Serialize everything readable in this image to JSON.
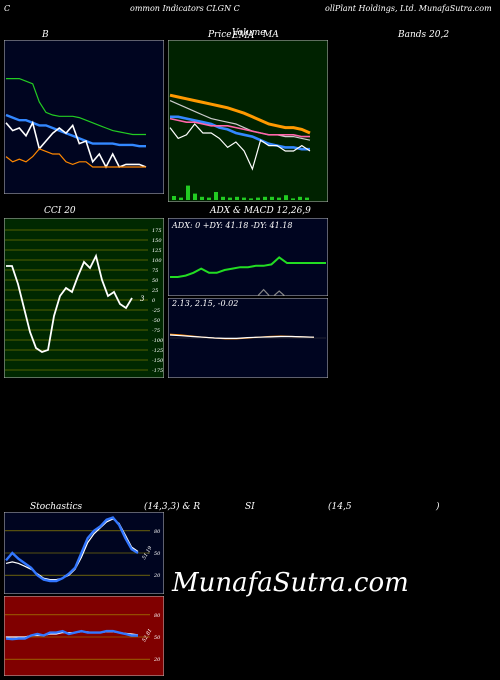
{
  "header": {
    "left": "C",
    "mid1": "ommon  Indicators CLGN  C",
    "mid2": "ollPlant Holdings, Ltd. MunafaSutra.com"
  },
  "titles": {
    "b": "B",
    "price": "Price,",
    "price_overlap1": "Volume",
    "price_overlap2": "EMA",
    "ma": "MA",
    "bands": "Bands 20,2",
    "cci": "CCI 20",
    "adx_macd": "ADX  & MACD 12,26,9",
    "adx_values": "ADX: 0  +DY: 41.18  -DY: 41.18",
    "macd_values": "2.13,  2.15,  -0.02",
    "stoch_left": "Stochastics",
    "stoch_mid": "(14,3,3) & R",
    "rsi_mid": "SI",
    "rsi_params": "(14,5",
    "rsi_close": ")"
  },
  "watermark": "MunafaSutra.com",
  "colors": {
    "panel_blue": "#000520",
    "panel_green": "#002200",
    "cci_bg": "#002800",
    "rsi_bg": "#800000",
    "green": "#22dd22",
    "blue": "#3388ff",
    "orange": "#ff8800",
    "white": "#ffffff"
  },
  "chart_data": [
    {
      "id": "bollinger",
      "type": "line",
      "title": "B",
      "ylim": [
        0,
        100
      ],
      "series": [
        {
          "color": "#22cc22",
          "values": [
            78,
            78,
            78,
            76,
            74,
            60,
            52,
            50,
            49,
            49,
            49,
            48,
            46,
            44,
            42,
            40,
            38,
            37,
            36,
            35,
            35,
            35
          ]
        },
        {
          "color": "#3388ff",
          "values": [
            50,
            48,
            46,
            46,
            44,
            42,
            42,
            40,
            38,
            36,
            34,
            32,
            30,
            28,
            28,
            28,
            28,
            27,
            27,
            27,
            26,
            26
          ]
        },
        {
          "color": "#ffffff",
          "values": [
            44,
            38,
            40,
            34,
            44,
            24,
            30,
            36,
            40,
            36,
            42,
            28,
            30,
            14,
            20,
            10,
            20,
            10,
            12,
            12,
            12,
            10
          ]
        },
        {
          "color": "#ff8800",
          "values": [
            18,
            14,
            16,
            14,
            18,
            24,
            22,
            20,
            20,
            14,
            12,
            14,
            14,
            10,
            10,
            10,
            10,
            10,
            10,
            10,
            10,
            10
          ]
        }
      ]
    },
    {
      "id": "price_ma",
      "type": "line",
      "title": "Price, Volume, EMA, MA",
      "ylim": [
        0,
        100
      ],
      "series": [
        {
          "color": "#ff9900",
          "values": [
            72,
            70,
            68,
            66,
            64,
            62,
            60,
            58,
            55,
            52,
            48,
            44,
            40,
            38,
            36,
            36,
            34,
            30
          ]
        },
        {
          "color": "#cccccc",
          "values": [
            66,
            62,
            58,
            54,
            50,
            46,
            44,
            42,
            40,
            36,
            32,
            30,
            28,
            28,
            26,
            26,
            24,
            22
          ]
        },
        {
          "color": "#3388ff",
          "values": [
            48,
            48,
            46,
            44,
            42,
            40,
            36,
            34,
            30,
            28,
            26,
            22,
            18,
            16,
            14,
            14,
            12,
            12
          ]
        },
        {
          "color": "#ff66aa",
          "values": [
            46,
            44,
            42,
            42,
            40,
            38,
            38,
            38,
            36,
            34,
            32,
            30,
            28,
            28,
            28,
            28,
            26,
            26
          ]
        },
        {
          "color": "#ffffff",
          "values": [
            36,
            24,
            28,
            40,
            30,
            30,
            24,
            14,
            20,
            10,
            -10,
            22,
            16,
            16,
            10,
            10,
            16,
            10
          ]
        }
      ],
      "volume": [
        5,
        3,
        18,
        8,
        4,
        3,
        10,
        4,
        3,
        4,
        3,
        2,
        3,
        4,
        4,
        3,
        6,
        2,
        4,
        3
      ]
    },
    {
      "id": "cci",
      "type": "line",
      "title": "CCI 20",
      "ylim": [
        -175,
        175
      ],
      "ticks": [
        "175",
        "150",
        "125",
        "100",
        "75",
        "50",
        "25",
        "0",
        "-25",
        "-50",
        "-75",
        "-100",
        "-125",
        "-150",
        "-175"
      ],
      "last_label": "3",
      "values": [
        85,
        85,
        40,
        -20,
        -80,
        -120,
        -130,
        -125,
        -40,
        10,
        30,
        20,
        60,
        95,
        80,
        110,
        50,
        10,
        20,
        -10,
        -20,
        5
      ]
    },
    {
      "id": "adx",
      "type": "line",
      "title": "ADX & MACD 12,26,9",
      "ylim": [
        0,
        100
      ],
      "series": [
        {
          "name": "ADX",
          "color": "#22dd22",
          "values": [
            30,
            30,
            32,
            36,
            42,
            36,
            36,
            40,
            42,
            44,
            44,
            46,
            46,
            48,
            58,
            50,
            50,
            50,
            50,
            50,
            50
          ]
        },
        {
          "name": "DI",
          "color": "#888888",
          "values": [
            0,
            0,
            0,
            0,
            0,
            0,
            0,
            0,
            0,
            0,
            0,
            0,
            12,
            0,
            10,
            0,
            0,
            0,
            0,
            0,
            0
          ]
        }
      ]
    },
    {
      "id": "macd",
      "type": "line",
      "ylim": [
        -1,
        1
      ],
      "series": [
        {
          "color": "#ff8800",
          "values": [
            0.1,
            0.08,
            0.05,
            0.02,
            0.0,
            -0.02,
            -0.02,
            0.0,
            0.02,
            0.04,
            0.05,
            0.04,
            0.03,
            0.02
          ]
        },
        {
          "color": "#ffffff",
          "values": [
            0.08,
            0.06,
            0.04,
            0.02,
            0.0,
            -0.01,
            -0.01,
            0.01,
            0.02,
            0.03,
            0.04,
            0.04,
            0.03,
            0.02
          ]
        }
      ]
    },
    {
      "id": "stochastics",
      "type": "line",
      "title": "Stochastics (14,3,3)",
      "ylim": [
        0,
        100
      ],
      "ticks": [
        "80",
        "50",
        "20"
      ],
      "last_label": "51.19",
      "series": [
        {
          "color": "#3377ff",
          "values": [
            40,
            50,
            42,
            36,
            30,
            20,
            14,
            12,
            12,
            16,
            22,
            30,
            50,
            70,
            80,
            86,
            95,
            98,
            88,
            70,
            55,
            50
          ]
        },
        {
          "color": "#ffffff",
          "values": [
            36,
            38,
            36,
            32,
            28,
            22,
            16,
            14,
            14,
            16,
            20,
            28,
            44,
            64,
            76,
            84,
            92,
            96,
            90,
            74,
            58,
            52
          ]
        }
      ]
    },
    {
      "id": "rsi",
      "type": "line",
      "title": "RSI (14,5)",
      "ylim": [
        0,
        100
      ],
      "ticks": [
        "80",
        "50",
        "20"
      ],
      "last_label": "52.81",
      "series": [
        {
          "color": "#3377ff",
          "values": [
            48,
            47,
            48,
            48,
            52,
            54,
            52,
            56,
            56,
            58,
            54,
            56,
            58,
            56,
            56,
            56,
            58,
            58,
            56,
            54,
            52,
            52
          ]
        },
        {
          "color": "#ffffff",
          "values": [
            50,
            50,
            50,
            50,
            52,
            52,
            52,
            54,
            54,
            56,
            56,
            56,
            57,
            57,
            56,
            56,
            57,
            57,
            56,
            55,
            54,
            53
          ]
        }
      ]
    }
  ]
}
